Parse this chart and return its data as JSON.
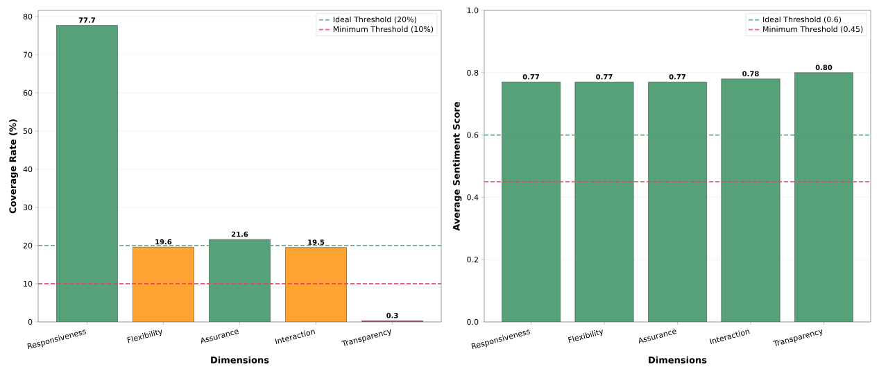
{
  "chart_data": [
    {
      "type": "bar",
      "categories": [
        "Responsiveness",
        "Flexibility",
        "Assurance",
        "Interaction",
        "Transparency"
      ],
      "values": [
        77.7,
        19.6,
        21.6,
        19.5,
        0.3
      ],
      "colors": [
        "#57a178",
        "#ffa333",
        "#57a178",
        "#ffa333",
        "#d9445c"
      ],
      "data_labels": true,
      "xlabel": "Dimensions",
      "ylabel": "Coverage Rate (%)",
      "ylim": [
        0,
        81.6
      ],
      "yticks": [
        0,
        10,
        20,
        30,
        40,
        50,
        60,
        70,
        80
      ],
      "grid": "y",
      "legend": "top right",
      "ref_lines": [
        {
          "axis": "y",
          "value": 20,
          "label": "Ideal Threshold (20%)",
          "color": "#57a178",
          "line_style": "dashed"
        },
        {
          "axis": "y",
          "value": 10,
          "label": "Minimum Threshold (10%)",
          "color": "#e8475f",
          "line_style": "dashed"
        }
      ]
    },
    {
      "type": "bar",
      "categories": [
        "Responsiveness",
        "Flexibility",
        "Assurance",
        "Interaction",
        "Transparency"
      ],
      "values": [
        0.77,
        0.77,
        0.77,
        0.78,
        0.8
      ],
      "value_labels": [
        "0.77",
        "0.77",
        "0.77",
        "0.78",
        "0.80"
      ],
      "colors": [
        "#57a178",
        "#57a178",
        "#57a178",
        "#57a178",
        "#57a178"
      ],
      "xlabel": "Dimensions",
      "ylabel": "Average Sentiment Score",
      "ylim": [
        0,
        1
      ],
      "yticks": [
        {
          "value": 0,
          "label": "0.0"
        },
        {
          "value": 0.2,
          "label": "0.2"
        },
        {
          "value": 0.4,
          "label": "0.4"
        },
        {
          "value": 0.6,
          "label": "0.6"
        },
        {
          "value": 0.8,
          "label": "0.8"
        },
        {
          "value": 1,
          "label": "1.0"
        }
      ],
      "grid": "y",
      "legend": "top right",
      "ref_lines": [
        {
          "axis": "y",
          "value": 0.6,
          "label": "Ideal Threshold (0.6)",
          "color": "#57a178",
          "line_style": "dashed"
        },
        {
          "axis": "y",
          "value": 0.45,
          "label": "Minimum Threshold (0.45)",
          "color": "#e8475f",
          "line_style": "dashed"
        }
      ]
    }
  ]
}
